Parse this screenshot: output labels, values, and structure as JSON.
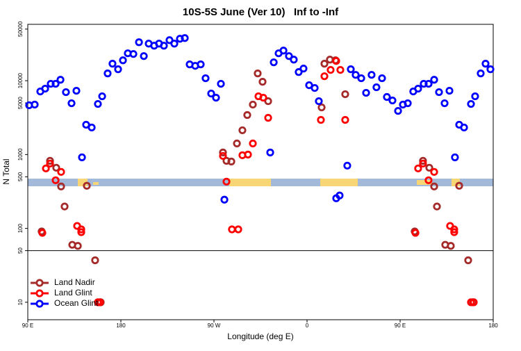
{
  "chart_data": {
    "type": "scatter",
    "title": "10S-5S June (Ver 10)   Inf to -Inf",
    "xlabel": "Longitude (deg E)",
    "ylabel": "N Total",
    "xlim": [
      90,
      540
    ],
    "xticks": [
      {
        "value": 90,
        "label": "90 E"
      },
      180,
      {
        "value": 270,
        "label": "90 W"
      },
      {
        "value": 360,
        "label": "0"
      },
      {
        "value": 450,
        "label": "90 E"
      },
      {
        "value": 540,
        "label": "180"
      }
    ],
    "ylim": [
      5.8,
      58000
    ],
    "yscale": "log",
    "yticks": [
      10,
      50,
      100,
      500,
      1000,
      5000,
      10000,
      50000
    ],
    "hline": 50,
    "legend": "lower left",
    "series": [
      {
        "name": "Land Nadir",
        "color": "#a52a2a",
        "x": [
          103.4,
          111.5,
          117.5,
          122.2,
          125.6,
          133.0,
          138.4,
          147.1,
          155.1,
          160.5,
          278.7,
          282.1,
          286.8,
          292.2,
          297.5,
          302.2,
          307.6,
          312.3,
          317.0,
          322.4,
          374.1,
          376.8,
          382.1,
          387.5,
          396.9,
          464.1,
          472.1,
          478.2,
          482.9,
          485.6,
          493.6,
          499.0,
          507.1,
          515.8,
          520.5
        ],
        "values": [
          91,
          823,
          663,
          370,
          198,
          60,
          58,
          378,
          37,
          10,
          1067,
          823,
          805,
          1413,
          2132,
          3430,
          4750,
          12550,
          9680,
          5280,
          4350,
          17000,
          19300,
          18900,
          6560,
          91,
          823,
          663,
          370,
          198,
          60,
          58,
          378,
          37,
          10
        ]
      },
      {
        "name": "Land Glint",
        "color": "#ff0000",
        "x": [
          104.1,
          107.5,
          111.5,
          116.9,
          122.2,
          137.7,
          141.7,
          141.7,
          157.8,
          159.8,
          278.7,
          282.1,
          287.4,
          293.5,
          297.5,
          302.9,
          307.6,
          313.0,
          317.7,
          322.4,
          373.4,
          376.8,
          382.8,
          388.2,
          392.2,
          396.9,
          464.8,
          467.4,
          472.1,
          477.5,
          482.9,
          498.3,
          502.3,
          502.3,
          518.5,
          521.2
        ],
        "values": [
          87,
          649,
          755,
          449,
          582,
          108,
          97,
          89,
          10,
          10,
          958,
          430,
          97,
          97,
          979,
          1000,
          1413,
          6150,
          5890,
          3145,
          2946,
          11500,
          14000,
          18500,
          14000,
          2946,
          87,
          649,
          755,
          449,
          582,
          108,
          97,
          89,
          10,
          10
        ]
      },
      {
        "name": "Ocean Glint",
        "color": "#0000ff",
        "x": [
          91.3,
          96.7,
          102.1,
          106.8,
          112.2,
          116.9,
          121.6,
          126.9,
          132.3,
          137.0,
          142.4,
          146.4,
          151.8,
          157.8,
          161.9,
          167.2,
          171.9,
          177.3,
          182.0,
          186.7,
          192.1,
          197.5,
          202.2,
          206.9,
          212.2,
          216.9,
          221.6,
          227.0,
          231.7,
          237.1,
          241.8,
          246.5,
          251.9,
          257.2,
          261.9,
          267.3,
          272.0,
          276.7,
          280.1,
          324.4,
          327.8,
          332.5,
          337.2,
          342.5,
          347.2,
          351.9,
          356.6,
          362.0,
          367.4,
          371.4,
          388.2,
          391.5,
          398.9,
          402.3,
          407.0,
          412.4,
          417.1,
          422.4,
          427.1,
          432.5,
          437.2,
          442.6,
          448.0,
          452.7,
          457.4,
          462.7,
          467.4,
          472.8,
          477.5,
          482.9,
          487.6,
          493.0,
          497.7,
          503.0,
          507.1,
          511.8,
          518.5,
          522.5,
          527.9,
          532.6,
          537.3
        ],
        "values": [
          4650,
          4750,
          7150,
          7800,
          9080,
          9080,
          10300,
          7000,
          4950,
          7310,
          917,
          2535,
          2325,
          4845,
          6150,
          12550,
          17000,
          14290,
          18900,
          23500,
          23000,
          33200,
          21550,
          31800,
          29800,
          31800,
          29800,
          35400,
          31800,
          37000,
          37800,
          16630,
          15900,
          16630,
          10800,
          6700,
          5890,
          9080,
          245,
          1067,
          17740,
          23500,
          25600,
          21550,
          19300,
          13100,
          14600,
          8690,
          7970,
          5280,
          256,
          279,
          708,
          14290,
          12000,
          10800,
          6850,
          12000,
          8150,
          10800,
          6020,
          5400,
          3900,
          4750,
          4950,
          7150,
          7800,
          9080,
          9080,
          10300,
          7000,
          4950,
          7310,
          917,
          2535,
          2325,
          4845,
          6150,
          12550,
          17000,
          14290
        ]
      }
    ]
  }
}
